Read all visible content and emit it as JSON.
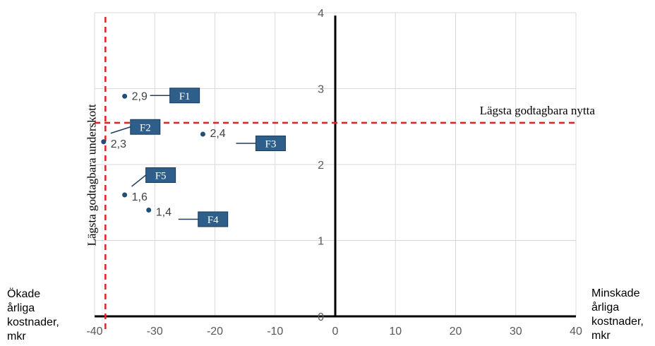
{
  "chart_data": {
    "type": "scatter",
    "xlim": [
      -40,
      40
    ],
    "ylim": [
      0,
      4
    ],
    "x_ticks": [
      -40,
      -30,
      -20,
      -10,
      0,
      10,
      20,
      30,
      40
    ],
    "y_ticks": [
      0,
      1,
      2,
      3,
      4
    ],
    "grid": true,
    "points": [
      {
        "tag": "F1",
        "x": -35,
        "y": 2.9,
        "label": "2,9"
      },
      {
        "tag": "F2",
        "x": -38.5,
        "y": 2.3,
        "label": "2,3"
      },
      {
        "tag": "F3",
        "x": -22,
        "y": 2.4,
        "label": "2,4"
      },
      {
        "tag": "F4",
        "x": -31,
        "y": 1.4,
        "label": "1,4"
      },
      {
        "tag": "F5",
        "x": -35,
        "y": 1.6,
        "label": "1,6"
      }
    ],
    "reference_lines": [
      {
        "orientation": "horizontal",
        "value": 2.55,
        "label": "Lägsta godtagbara nytta",
        "color": "#e32222",
        "style": "dashed"
      },
      {
        "orientation": "vertical",
        "value": -38.2,
        "label": "Lägsta godtagbara underskott",
        "color": "#e32222",
        "style": "dashed"
      }
    ],
    "x_side_labels": {
      "left": "Ökade\nårliga\nkostnader,\nmkr",
      "right": "Minskade\nårliga\nkostnader,\nmkr"
    },
    "colors": {
      "point": "#1f4e79",
      "tag_fill": "#2e5f8a",
      "axis": "#000000",
      "grid": "#d9d9d9",
      "reference": "#e32222"
    }
  }
}
